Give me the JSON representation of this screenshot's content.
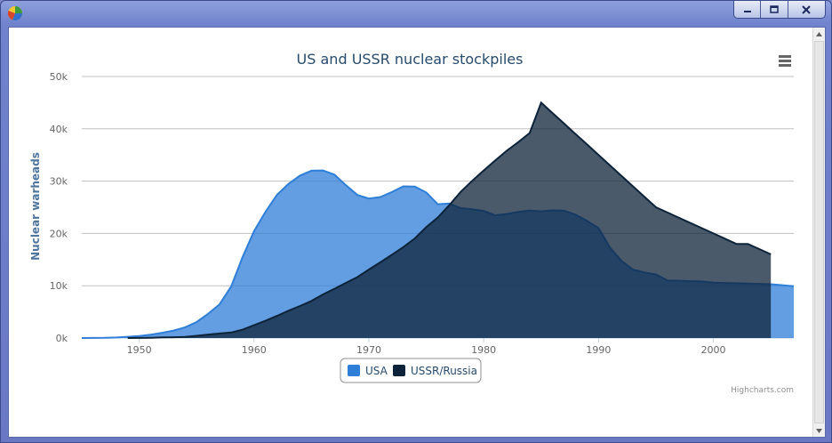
{
  "window": {
    "app_icon": "pie-chart-icon",
    "controls": [
      "minimize-icon",
      "maximize-icon",
      "close-icon"
    ]
  },
  "menu_icon": "hamburger-menu-icon",
  "credits": "Highcharts.com",
  "colors": {
    "usa": "#2f7ed8",
    "ussr": "#0d233a",
    "title": "#274b6d",
    "axis": "#666666"
  },
  "chart_data": {
    "type": "area",
    "title": "US and USSR nuclear stockpiles",
    "ylabel": "Nuclear warheads",
    "xlabel": "",
    "xlim": [
      1945,
      2007
    ],
    "ylim": [
      0,
      50000
    ],
    "xticks": [
      "1950",
      "1960",
      "1970",
      "1980",
      "1990",
      "2000"
    ],
    "yticks": [
      "0k",
      "10k",
      "20k",
      "30k",
      "40k",
      "50k"
    ],
    "legend": "bottom-center",
    "grid": true,
    "series": [
      {
        "name": "USA",
        "color": "#2f7ed8",
        "x0": 1945,
        "values": [
          6,
          11,
          32,
          110,
          235,
          369,
          640,
          1005,
          1436,
          2063,
          3057,
          4618,
          6444,
          9822,
          15468,
          20434,
          24126,
          27387,
          29459,
          31056,
          31982,
          32040,
          31233,
          29224,
          27342,
          26662,
          26956,
          27912,
          28999,
          28965,
          27826,
          25579,
          25722,
          24826,
          24605,
          24304,
          23464,
          23708,
          24099,
          24357,
          24237,
          24401,
          24344,
          23586,
          22380,
          21004,
          17287,
          14747,
          13076,
          12555,
          12144,
          11009,
          10950,
          10871,
          10824,
          10577,
          10527,
          10475,
          10421,
          10358,
          10295,
          10104,
          9914
        ]
      },
      {
        "name": "USSR/Russia",
        "color": "#0d233a",
        "x0": 1949,
        "values": [
          5,
          25,
          50,
          120,
          150,
          200,
          426,
          660,
          869,
          1060,
          1605,
          2471,
          3322,
          4238,
          5221,
          6129,
          7089,
          8339,
          9399,
          10538,
          11643,
          13092,
          14478,
          15915,
          17385,
          19055,
          21205,
          23044,
          25393,
          27935,
          30062,
          32049,
          33952,
          35804,
          37431,
          39197,
          45000,
          43000,
          41000,
          39000,
          37000,
          35000,
          33000,
          31000,
          29000,
          27000,
          25000,
          24000,
          23000,
          22000,
          21000,
          20000,
          19000,
          18000,
          18000,
          17000,
          16000
        ]
      }
    ]
  }
}
